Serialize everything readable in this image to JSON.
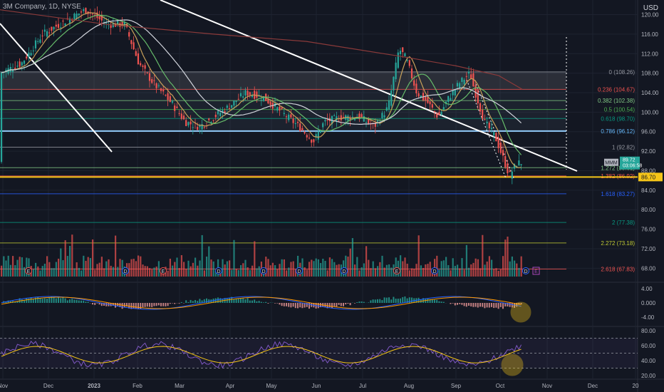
{
  "header": {
    "title": "3M Company, 1D, NYSE",
    "currency": "USD"
  },
  "colors": {
    "bg": "#131722",
    "up": "#26a69a",
    "down": "#ef5350",
    "grid": "#1e2330",
    "price_tag": "#26a69a",
    "support": "#f5c518",
    "fib": "#ef5350"
  },
  "price_tag": {
    "symbol": "MMM",
    "value": "89.72",
    "countdown": "03:06:58"
  },
  "support_tag": {
    "value": "86.70"
  },
  "chart_data": {
    "type": "candlestick",
    "y_axis": {
      "min": 66,
      "max": 123,
      "ticks": [
        "120.00",
        "116.00",
        "112.00",
        "108.00",
        "104.00",
        "100.00",
        "96.00",
        "92.00",
        "88.00",
        "84.00",
        "80.00",
        "76.00",
        "72.00",
        "68.00"
      ]
    },
    "x_axis": {
      "labels": [
        "Nov",
        "Dec",
        "2023",
        "Feb",
        "Mar",
        "Apr",
        "May",
        "Jun",
        "Jul",
        "Aug",
        "Sep",
        "Oct",
        "Nov",
        "Dec",
        "20"
      ]
    },
    "fib_levels": [
      {
        "label": "0 (108.26)",
        "value": 108.26,
        "color": "#9598a1"
      },
      {
        "label": "0.236 (104.67)",
        "value": 104.67,
        "color": "#ef5350"
      },
      {
        "label": "0.382 (102.38)",
        "value": 102.38,
        "color": "#81c784"
      },
      {
        "label": "0.5 (100.54)",
        "value": 100.54,
        "color": "#4caf50"
      },
      {
        "label": "0.618 (98.70)",
        "value": 98.7,
        "color": "#089981"
      },
      {
        "label": "0.786 (96.12)",
        "value": 96.12,
        "color": "#64b5f6"
      },
      {
        "label": "1 (92.82)",
        "value": 92.82,
        "color": "#9598a1"
      },
      {
        "label": "1.272 (88.61)",
        "value": 88.61,
        "color": "#81c784"
      },
      {
        "label": "1.382 (86.92)",
        "value": 86.92,
        "color": "#ef5350"
      },
      {
        "label": "1.618 (83.27)",
        "value": 83.27,
        "color": "#2962ff"
      },
      {
        "label": "2 (77.38)",
        "value": 77.38,
        "color": "#089981"
      },
      {
        "label": "2.272 (73.18)",
        "value": 73.18,
        "color": "#c0ca33"
      },
      {
        "label": "2.618 (67.83)",
        "value": 67.83,
        "color": "#ef5350"
      }
    ],
    "macd_axis": {
      "ticks": [
        "4.00",
        "0.000",
        "-4.00"
      ]
    },
    "rsi_axis": {
      "ticks": [
        "80.00",
        "60.00",
        "40.00",
        "20.00"
      ]
    },
    "event_markers": [
      "E",
      "D",
      "E",
      "D",
      "D",
      "D",
      "D",
      "E",
      "D",
      "D"
    ]
  }
}
